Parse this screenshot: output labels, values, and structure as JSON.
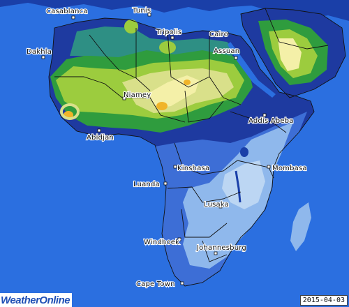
{
  "map": {
    "region": "Africa",
    "cities": [
      {
        "id": "casablanca",
        "label": "Casablanca"
      },
      {
        "id": "tunis",
        "label": "Tunis"
      },
      {
        "id": "tripolis",
        "label": "Tripolis"
      },
      {
        "id": "cairo",
        "label": "Cairo"
      },
      {
        "id": "assuan",
        "label": "Assuan"
      },
      {
        "id": "dakhla",
        "label": "Dakhla"
      },
      {
        "id": "niamey",
        "label": "Niamey"
      },
      {
        "id": "addis",
        "label": "Addis Abeba"
      },
      {
        "id": "abidjan",
        "label": "Abidjan"
      },
      {
        "id": "kinshasa",
        "label": "Kinshasa"
      },
      {
        "id": "mombasa",
        "label": "Mombasa"
      },
      {
        "id": "luanda",
        "label": "Luanda"
      },
      {
        "id": "lusaka",
        "label": "Lusaka"
      },
      {
        "id": "windhoek",
        "label": "Windhoek"
      },
      {
        "id": "johannesburg",
        "label": "Johannesburg"
      },
      {
        "id": "capetown",
        "label": "Cape Town"
      }
    ],
    "colors": {
      "ocean": "#2b6fe0",
      "water_dark": "#1a3fa8",
      "band_navy": "#1e3aa0",
      "band_blue": "#3d6ed6",
      "band_lightblue": "#8fb8ec",
      "band_pale": "#bcd6f3",
      "band_teal": "#2e8f84",
      "band_green": "#2f9c3e",
      "band_lightgreen": "#9ccc3e",
      "band_yellowgreen": "#d9e08a",
      "band_cream": "#f4f0a8",
      "band_orange": "#f0b429",
      "borders": "#111111"
    }
  },
  "brand": {
    "name": "WeatherOnline"
  },
  "date": "2015-04-03"
}
